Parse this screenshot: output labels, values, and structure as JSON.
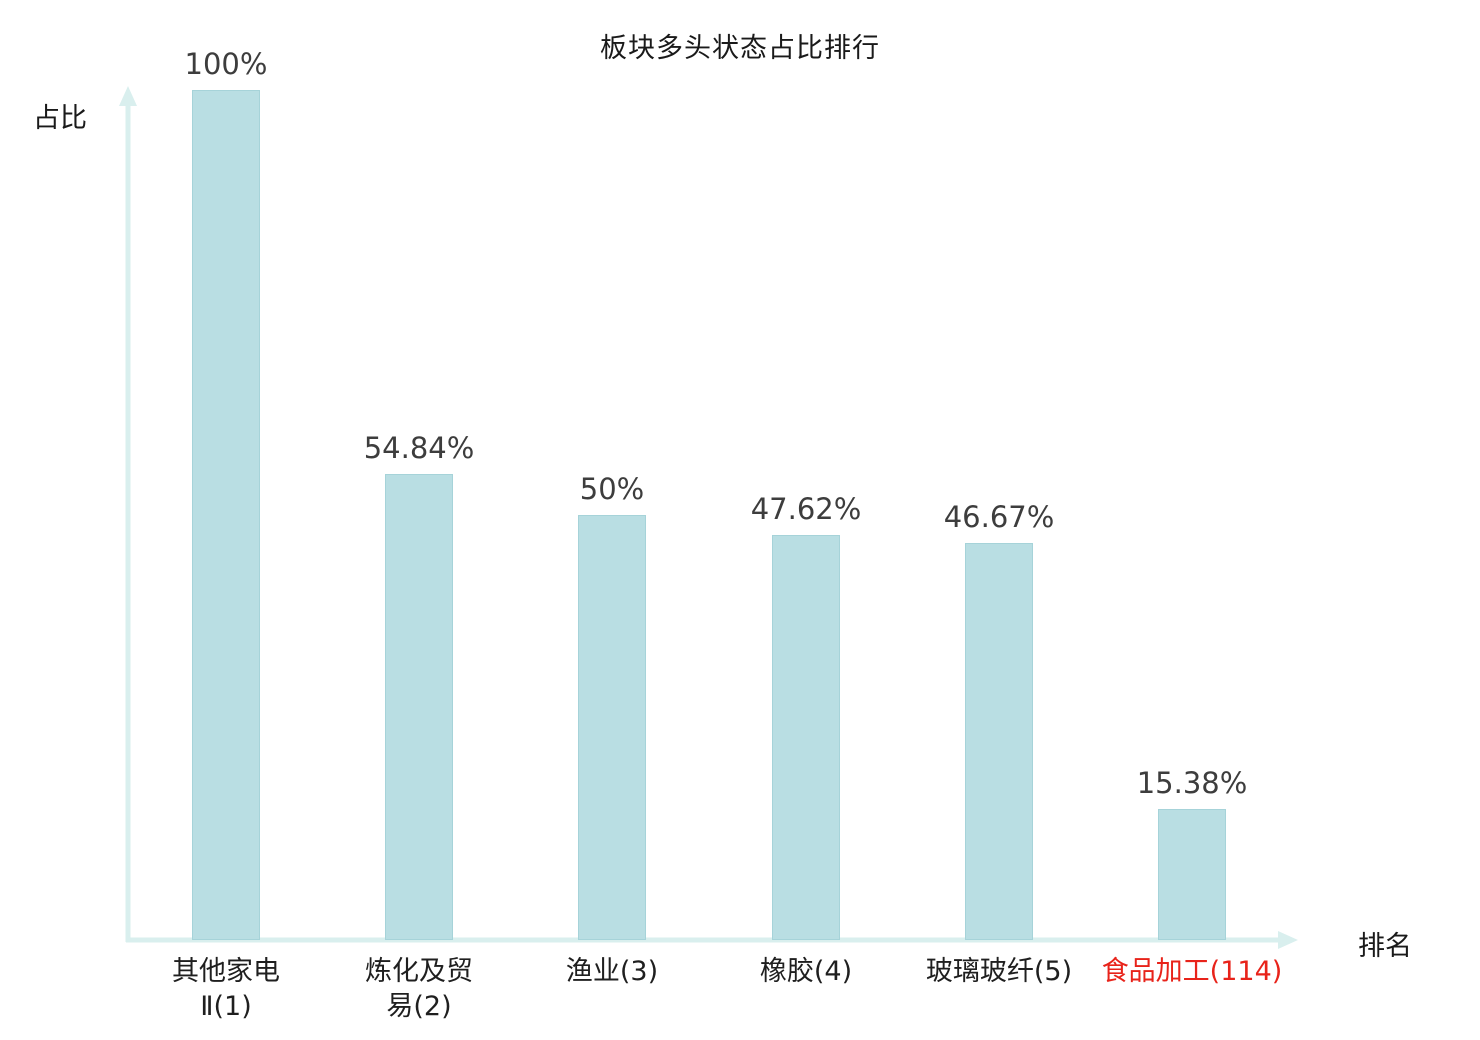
{
  "chart": {
    "title": "板块多头状态占比排行",
    "y_axis_label": "占比",
    "x_axis_label": "排名"
  },
  "chart_data": {
    "type": "bar",
    "title": "板块多头状态占比排行",
    "xlabel": "排名",
    "ylabel": "占比",
    "categories": [
      "其他家电Ⅱ(1)",
      "炼化及贸易(2)",
      "渔业(3)",
      "橡胶(4)",
      "玻璃玻纤(5)",
      "食品加工(114)"
    ],
    "values": [
      100,
      54.84,
      50,
      47.62,
      46.67,
      15.38
    ],
    "value_labels": [
      "100%",
      "54.84%",
      "50%",
      "47.62%",
      "46.67%",
      "15.38%"
    ],
    "category_lines": [
      [
        "其他家电",
        "Ⅱ(1)"
      ],
      [
        "炼化及贸",
        "易(2)"
      ],
      [
        "渔业(3)"
      ],
      [
        "橡胶(4)"
      ],
      [
        "玻璃玻纤(5)"
      ],
      [
        "食品加工(114)"
      ]
    ],
    "ylim": [
      0,
      100
    ],
    "grid": false,
    "legend": "none",
    "bar_color": "#b9dee3",
    "bar_border_color": "#a6d3d9",
    "axis_color": "#d9efee",
    "value_label_color": "#3d3d3d",
    "category_label_color": "#1f1f1f",
    "highlight_index": 5,
    "highlight_color": "#e8231a"
  }
}
